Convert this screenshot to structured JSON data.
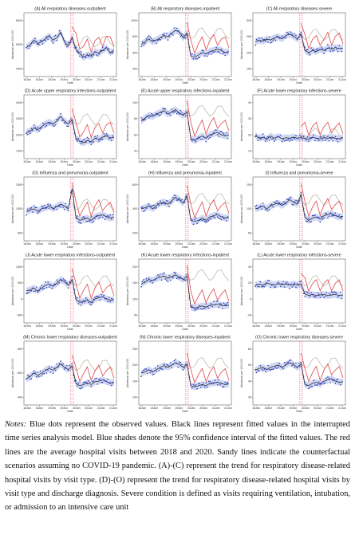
{
  "figure": {
    "x_tick_labels": [
      "18Jan",
      "18Jun",
      "19Jan",
      "19Jun",
      "20Jan",
      "20Jun",
      "21Jan",
      "21Jun"
    ],
    "x_axis_label": "Date",
    "y_axis_label": "Admission per 1000,000",
    "colors": {
      "observed": "#2b3fb8",
      "fitted": "#111111",
      "ci_shade": "#9aa8e6",
      "average": "#e04545",
      "counterfactual": "#c7c2b8",
      "intervention": "#d9364b"
    }
  },
  "chart_data": [
    {
      "type": "line",
      "title": "(A) All respiratory diseases-outpatient",
      "y_tick_labels": [
        "8000",
        "6000",
        "4000"
      ],
      "series": [
        {
          "name": "",
          "values": [
            0.45,
            0.5,
            0.58,
            0.52,
            0.55,
            0.6,
            0.65,
            0.58,
            0.62,
            0.72,
            0.55,
            0.48,
            0.62,
            0.42,
            0.35,
            0.28,
            0.32,
            0.3,
            0.38,
            0.35,
            0.4,
            0.45,
            0.36,
            0.4
          ]
        }
      ]
    },
    {
      "type": "line",
      "title": "(B) All respiratory diseases-inpatient",
      "y_tick_labels": [
        "1000",
        "800",
        "600",
        "400"
      ],
      "series": [
        {
          "name": "",
          "values": [
            0.5,
            0.55,
            0.6,
            0.55,
            0.58,
            0.62,
            0.66,
            0.64,
            0.7,
            0.75,
            0.72,
            0.62,
            0.7,
            0.3,
            0.28,
            0.32,
            0.36,
            0.34,
            0.38,
            0.4,
            0.42,
            0.4,
            0.36,
            0.38
          ]
        }
      ]
    },
    {
      "type": "line",
      "title": "(C) All respiratory diseases-severe",
      "y_tick_labels": [
        "300",
        "250",
        "200",
        "150"
      ],
      "series": [
        {
          "name": "",
          "values": [
            0.55,
            0.58,
            0.56,
            0.6,
            0.58,
            0.62,
            0.64,
            0.6,
            0.66,
            0.68,
            0.65,
            0.6,
            0.68,
            0.4,
            0.36,
            0.4,
            0.38,
            0.42,
            0.4,
            0.44,
            0.42,
            0.45,
            0.43,
            0.44
          ]
        }
      ]
    },
    {
      "type": "line",
      "title": "(D) Acute upper respiratory infections-outpatient",
      "y_tick_labels": [
        "4000",
        "3000",
        "2000",
        "1000"
      ],
      "series": [
        {
          "name": "",
          "values": [
            0.4,
            0.42,
            0.48,
            0.45,
            0.5,
            0.55,
            0.58,
            0.55,
            0.6,
            0.68,
            0.6,
            0.55,
            0.62,
            0.3,
            0.25,
            0.22,
            0.26,
            0.24,
            0.3,
            0.28,
            0.32,
            0.34,
            0.3,
            0.32
          ]
        }
      ]
    },
    {
      "type": "line",
      "title": "(E) Acute upper respiratory infections-inpatient",
      "y_tick_labels": [
        "100",
        "80",
        "60",
        "40"
      ],
      "series": [
        {
          "name": "",
          "values": [
            0.6,
            0.65,
            0.7,
            0.68,
            0.72,
            0.75,
            0.78,
            0.72,
            0.76,
            0.8,
            0.74,
            0.7,
            0.76,
            0.3,
            0.26,
            0.3,
            0.34,
            0.3,
            0.36,
            0.38,
            0.4,
            0.36,
            0.34,
            0.36
          ]
        }
      ]
    },
    {
      "type": "line",
      "title": "(F) Acute lower respiratory infections-severe",
      "y_tick_labels": [
        "40",
        "30",
        "20",
        "10"
      ],
      "series": [
        {
          "name": "",
          "values": [
            0.35,
            0.3,
            0.32,
            0.28,
            0.34,
            0.3,
            0.33,
            0.29,
            0.31,
            0.3,
            0.32,
            0.3,
            0.31,
            0.3,
            0.28,
            0.32,
            0.3,
            0.29,
            0.31,
            0.3,
            0.32,
            0.3,
            0.29,
            0.31
          ]
        }
      ]
    },
    {
      "type": "line",
      "title": "(G) Influenza and pneumonia-outpatient",
      "y_tick_labels": [
        "1500",
        "1000",
        "500"
      ],
      "series": [
        {
          "name": "",
          "values": [
            0.45,
            0.48,
            0.5,
            0.46,
            0.5,
            0.52,
            0.55,
            0.5,
            0.54,
            0.58,
            0.55,
            0.5,
            0.85,
            0.35,
            0.3,
            0.32,
            0.34,
            0.3,
            0.36,
            0.38,
            0.4,
            0.36,
            0.34,
            0.36
          ]
        }
      ]
    },
    {
      "type": "line",
      "title": "(H) Influenza and pneumonia-inpatient",
      "y_tick_labels": [
        "600",
        "400",
        "200"
      ],
      "series": [
        {
          "name": "",
          "values": [
            0.5,
            0.52,
            0.55,
            0.5,
            0.56,
            0.6,
            0.62,
            0.58,
            0.64,
            0.7,
            0.66,
            0.6,
            0.72,
            0.3,
            0.28,
            0.3,
            0.34,
            0.3,
            0.36,
            0.38,
            0.4,
            0.36,
            0.34,
            0.35
          ]
        }
      ]
    },
    {
      "type": "line",
      "title": "(I) Influenza and pneumonia-severe",
      "y_tick_labels": [
        "150",
        "100",
        "50"
      ],
      "series": [
        {
          "name": "",
          "values": [
            0.5,
            0.52,
            0.55,
            0.5,
            0.55,
            0.58,
            0.6,
            0.56,
            0.6,
            0.66,
            0.62,
            0.58,
            0.75,
            0.35,
            0.3,
            0.34,
            0.36,
            0.32,
            0.38,
            0.4,
            0.42,
            0.38,
            0.36,
            0.37
          ]
        }
      ]
    },
    {
      "type": "line",
      "title": "(J) Acute lower respiratory infections-outpatient",
      "y_tick_labels": [
        "1000",
        "500",
        "0",
        "-500"
      ],
      "series": [
        {
          "name": "",
          "values": [
            0.5,
            0.52,
            0.55,
            0.5,
            0.55,
            0.6,
            0.62,
            0.58,
            0.64,
            0.7,
            0.66,
            0.6,
            0.7,
            0.35,
            0.3,
            0.32,
            0.34,
            0.3,
            0.36,
            0.38,
            0.4,
            0.36,
            0.34,
            0.35
          ]
        }
      ]
    },
    {
      "type": "line",
      "title": "(K) Acute lower respiratory infections-inpatient",
      "y_tick_labels": [
        "200",
        "150",
        "100",
        "50"
      ],
      "series": [
        {
          "name": "",
          "values": [
            0.62,
            0.66,
            0.7,
            0.68,
            0.72,
            0.74,
            0.76,
            0.72,
            0.75,
            0.78,
            0.74,
            0.7,
            0.76,
            0.22,
            0.2,
            0.22,
            0.24,
            0.22,
            0.25,
            0.26,
            0.27,
            0.25,
            0.24,
            0.25
          ]
        }
      ]
    },
    {
      "type": "line",
      "title": "(L) Acute lower respiratory infections-severe",
      "y_tick_labels": [
        "40",
        "20",
        "0",
        "-20"
      ],
      "series": [
        {
          "name": "",
          "values": [
            0.6,
            0.62,
            0.6,
            0.64,
            0.62,
            0.6,
            0.63,
            0.61,
            0.62,
            0.6,
            0.62,
            0.6,
            0.62,
            0.45,
            0.42,
            0.44,
            0.42,
            0.43,
            0.44,
            0.42,
            0.43,
            0.44,
            0.42,
            0.43
          ]
        }
      ]
    },
    {
      "type": "line",
      "title": "(M) Chronic lower respiratory diseases-outpatient",
      "y_tick_labels": [
        "800",
        "600",
        "400"
      ],
      "series": [
        {
          "name": "",
          "values": [
            0.4,
            0.44,
            0.5,
            0.46,
            0.5,
            0.55,
            0.58,
            0.55,
            0.6,
            0.66,
            0.6,
            0.56,
            0.62,
            0.32,
            0.28,
            0.3,
            0.33,
            0.3,
            0.35,
            0.36,
            0.38,
            0.35,
            0.33,
            0.34
          ]
        }
      ]
    },
    {
      "type": "line",
      "title": "(N) Chronic lower respiratory diseases-inpatient",
      "y_tick_labels": [
        "250",
        "200",
        "150",
        "100"
      ],
      "series": [
        {
          "name": "",
          "values": [
            0.5,
            0.52,
            0.56,
            0.52,
            0.56,
            0.6,
            0.63,
            0.6,
            0.64,
            0.68,
            0.65,
            0.6,
            0.66,
            0.28,
            0.26,
            0.28,
            0.3,
            0.28,
            0.32,
            0.33,
            0.34,
            0.32,
            0.3,
            0.31
          ]
        }
      ]
    },
    {
      "type": "line",
      "title": "(O) Chronic lower respiratory diseases-severe",
      "y_tick_labels": [
        "60",
        "50",
        "40",
        "30"
      ],
      "series": [
        {
          "name": "",
          "values": [
            0.55,
            0.58,
            0.6,
            0.56,
            0.6,
            0.62,
            0.64,
            0.6,
            0.64,
            0.68,
            0.65,
            0.6,
            0.66,
            0.3,
            0.28,
            0.32,
            0.34,
            0.3,
            0.36,
            0.38,
            0.4,
            0.36,
            0.34,
            0.35
          ]
        }
      ]
    }
  ],
  "notes": {
    "lead": "Notes:",
    "text": " Blue dots represent the observed values. Black lines represent fitted values in the interrupted time series analysis model. Blue shades denote the 95% confidence interval of the fitted values. The red lines are the average hospital visits between 2018 and 2020. Sandy lines indicate the counterfactual scenarios assuming no COVID-19 pandemic. (A)-(C) represent the trend for respiratory disease-related hospital visits by visit type. (D)-(O) represent the trend for respiratory disease-related hospital visits by visit type and discharge diagnosis. Severe condition is defined as visits requiring ventilation, intubation, or admission to an intensive care unit"
  }
}
